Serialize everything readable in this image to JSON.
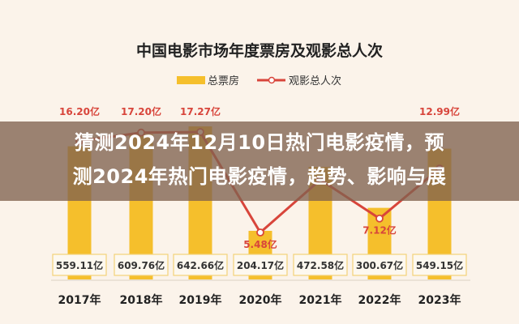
{
  "chart_data": {
    "type": "bar+line",
    "title": "中国电影市场年度票房及观影总人次",
    "legend_position": "top",
    "categories": [
      "2017年",
      "2018年",
      "2019年",
      "2020年",
      "2021年",
      "2022年",
      "2023年"
    ],
    "series": [
      {
        "name": "总票房",
        "type": "bar",
        "unit": "亿",
        "values": [
          559.11,
          609.76,
          642.66,
          204.17,
          472.58,
          300.67,
          549.15
        ],
        "labels": [
          "559.11亿",
          "609.76亿",
          "642.66亿",
          "204.17亿",
          "472.58亿",
          "300.67亿",
          "549.15亿"
        ]
      },
      {
        "name": "观影总人次",
        "type": "line",
        "unit": "亿",
        "values": [
          16.2,
          17.2,
          17.27,
          5.48,
          11.67,
          7.12,
          12.99
        ],
        "labels": [
          "16.20亿",
          "17.20亿",
          "17.27亿",
          "5.48亿",
          "",
          "7.12亿",
          "12.99亿"
        ]
      }
    ],
    "grid": false,
    "colors": {
      "bar": "#f5bf2c",
      "line": "#d8453b",
      "label_box_border": "#f3d27a",
      "background": "#fbf3ea"
    }
  },
  "overlay": {
    "line1": "猜测2024年12月10日热门电影疫情，预",
    "line2": "测2024年热门电影疫情，趋势、影响与展"
  }
}
